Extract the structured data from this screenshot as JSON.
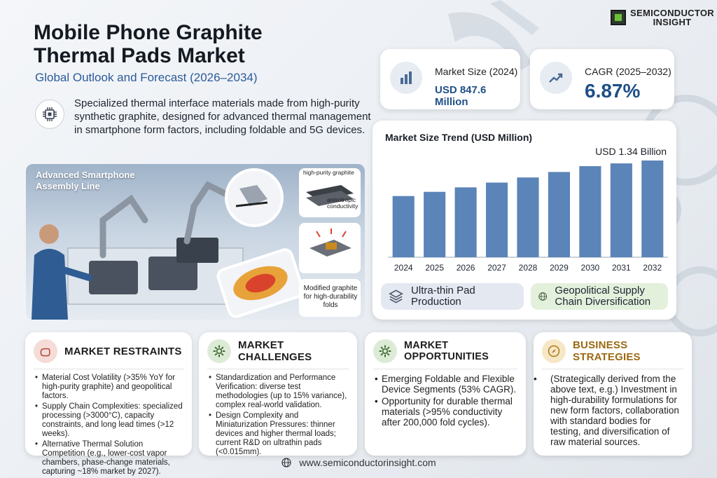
{
  "logo": {
    "line1": "SEMICONDUCTOR",
    "line2": "INSIGHT"
  },
  "header": {
    "title": "Mobile Phone Graphite Thermal Pads Market",
    "subtitle": "Global Outlook and Forecast (2026–2034)"
  },
  "intro": "Specialized thermal interface materials made from high-purity synthetic graphite, designed for advanced thermal management in smartphone form factors, including foldable and 5G devices.",
  "scene": {
    "label": "Advanced Smartphone Assembly Line",
    "callout_top": "high-purity graphite",
    "callout_mid": "anisotropic conductivity",
    "callout_bottom": "Modified graphite for high-durability folds"
  },
  "stats": {
    "market_size_label": "Market Size (2024)",
    "market_size_value": "USD 847.6 Million",
    "cagr_label": "CAGR (2025–2032)",
    "cagr_value": "6.87%"
  },
  "chart_data": {
    "type": "bar",
    "title": "Market Size Trend (USD Million)",
    "categories": [
      "2024",
      "2025",
      "2026",
      "2027",
      "2028",
      "2029",
      "2030",
      "2031",
      "2032"
    ],
    "values": [
      847.6,
      906,
      968,
      1034,
      1105,
      1181,
      1262,
      1300,
      1340
    ],
    "annotation": "USD 1.34 Billion",
    "bar_color": "#5b84b8"
  },
  "pills": {
    "left": "Ultra-thin Pad Production",
    "right": "Geopolitical Supply Chain Diversification"
  },
  "restraints": {
    "title": "MARKET RESTRAINTS",
    "items": [
      "Material Cost Volatility (>35% YoY for high-purity graphite) and geopolitical factors.",
      "Supply Chain Complexities: specialized processing (>3000°C), capacity constraints, and long lead times (>12 weeks).",
      "Alternative Thermal Solution Competition (e.g., lower-cost vapor chambers, phase-change materials, capturing ~18% market by 2027)."
    ]
  },
  "challenges": {
    "title": "MARKET CHALLENGES",
    "items": [
      "Standardization and Performance Verification: diverse test methodologies (up to 15% variance), complex real-world validation.",
      "Design Complexity and Miniaturization Pressures: thinner devices and higher thermal loads; current R&D on ultrathin pads (<0.015mm)."
    ]
  },
  "opportunities": {
    "title": "MARKET OPPORTUNITIES",
    "items": [
      "Emerging Foldable and Flexible Device Segments (53% CAGR).",
      "Opportunity for durable thermal materials (>95% conductivity after 200,000 fold cycles)."
    ]
  },
  "strategies": {
    "title": "BUSINESS STRATEGIES",
    "text": "(Strategically derived from the above text, e.g.) Investment in high-durability formulations for new form factors, collaboration with standard bodies for testing, and diversification of raw material sources."
  },
  "footer": {
    "url": "www.semiconductorinsight.com"
  }
}
